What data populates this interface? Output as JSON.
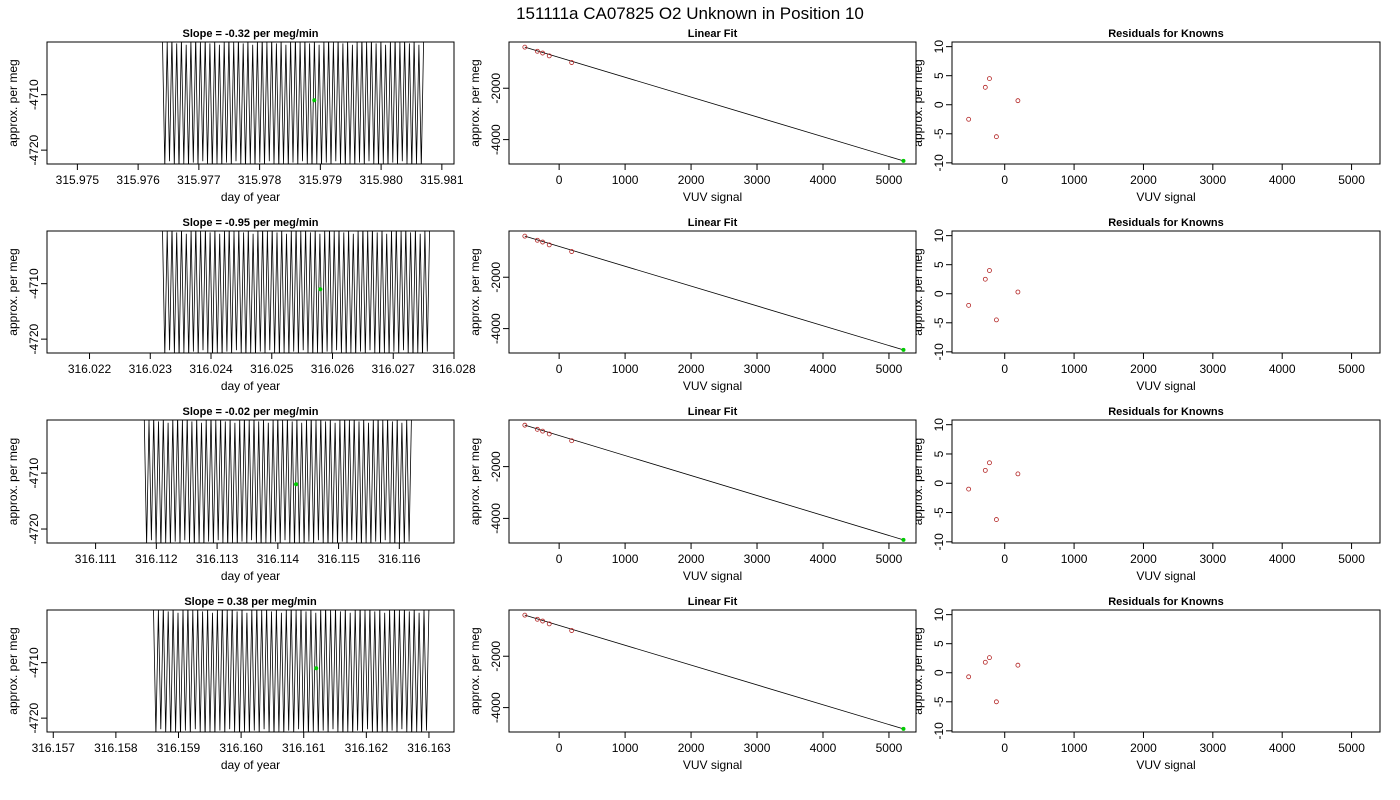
{
  "page_title": "151111a     CA07825   O2 Unknown in Position  10",
  "colors": {
    "trace": "#000000",
    "highlight": "#00cc00",
    "known_point": "#b22222",
    "background": "#ffffff"
  },
  "chart_data": [
    {
      "type": "line",
      "row": 0,
      "kind": "timeseries",
      "title": "Slope =  -0.32  per meg/min",
      "xlabel": "day of year",
      "ylabel": "approx. per meg",
      "xlim": [
        315.9745,
        315.9812
      ],
      "ylim": [
        -4722.5,
        -4700.5
      ],
      "x_ticks": [
        315.975,
        315.976,
        315.977,
        315.978,
        315.979,
        315.98,
        315.981
      ],
      "x_tick_labels": [
        "315.975",
        "315.976",
        "315.977",
        "315.978",
        "315.979",
        "315.980",
        "315.981"
      ],
      "y_ticks": [
        -4720,
        -4710
      ],
      "y_tick_labels": [
        "-4720",
        "-4710"
      ],
      "trace": {
        "x_start": 315.9764,
        "x_end": 315.9807,
        "y_low": -4722.5,
        "y_high": -4700.5,
        "cycles": 55
      },
      "highlight_point": {
        "x": 315.9789,
        "y": -4711
      }
    },
    {
      "type": "line",
      "row": 0,
      "kind": "fit",
      "title": "Linear Fit",
      "xlabel": "VUV signal",
      "ylabel": "approx. per meg",
      "xlim": [
        -760,
        5410
      ],
      "ylim": [
        -4950,
        -200
      ],
      "x_ticks": [
        0,
        1000,
        2000,
        3000,
        4000,
        5000
      ],
      "x_tick_labels": [
        "0",
        "1000",
        "2000",
        "3000",
        "4000",
        "5000"
      ],
      "y_ticks": [
        -4000,
        -2000
      ],
      "y_tick_labels": [
        "-4000",
        "-2000"
      ],
      "line": {
        "x": [
          -520,
          5220
        ],
        "y": [
          -400,
          -4830
        ]
      },
      "known_points": {
        "x": [
          -520,
          -330,
          -250,
          -150,
          190
        ],
        "y": [
          -400,
          -560,
          -630,
          -740,
          -1000
        ]
      },
      "highlight_point": {
        "x": 5220,
        "y": -4830
      }
    },
    {
      "type": "scatter",
      "row": 0,
      "kind": "residuals",
      "title": "Residuals for Knowns",
      "xlabel": "VUV signal",
      "ylabel": "approx. per meg",
      "xlim": [
        -760,
        5410
      ],
      "ylim": [
        -10.2,
        10.8
      ],
      "x_ticks": [
        0,
        1000,
        2000,
        3000,
        4000,
        5000
      ],
      "x_tick_labels": [
        "0",
        "1000",
        "2000",
        "3000",
        "4000",
        "5000"
      ],
      "y_ticks": [
        -10,
        -5,
        0,
        5,
        10
      ],
      "y_tick_labels": [
        "-10",
        "-5",
        "0",
        "5",
        "10"
      ],
      "points": {
        "x": [
          -520,
          -280,
          -220,
          -120,
          190
        ],
        "y": [
          -2.5,
          3,
          4.5,
          -5.5,
          0.7
        ]
      }
    },
    {
      "type": "line",
      "row": 1,
      "kind": "timeseries",
      "title": "Slope =  -0.95  per meg/min",
      "xlabel": "day of year",
      "ylabel": "approx. per meg",
      "xlim": [
        316.0213,
        316.028
      ],
      "ylim": [
        -4722.5,
        -4700.5
      ],
      "x_ticks": [
        316.022,
        316.023,
        316.024,
        316.025,
        316.026,
        316.027,
        316.028
      ],
      "x_tick_labels": [
        "316.022",
        "316.023",
        "316.024",
        "316.025",
        "316.026",
        "316.027",
        "316.028"
      ],
      "y_ticks": [
        -4720,
        -4710
      ],
      "y_tick_labels": [
        "-4720",
        "-4710"
      ],
      "trace": {
        "x_start": 316.0232,
        "x_end": 316.0276,
        "y_low": -4722.5,
        "y_high": -4700.5,
        "cycles": 56
      },
      "highlight_point": {
        "x": 316.0258,
        "y": -4711
      }
    },
    {
      "type": "line",
      "row": 1,
      "kind": "fit",
      "title": "Linear Fit",
      "xlabel": "VUV signal",
      "ylabel": "approx. per meg",
      "xlim": [
        -760,
        5410
      ],
      "ylim": [
        -4950,
        -200
      ],
      "x_ticks": [
        0,
        1000,
        2000,
        3000,
        4000,
        5000
      ],
      "x_tick_labels": [
        "0",
        "1000",
        "2000",
        "3000",
        "4000",
        "5000"
      ],
      "y_ticks": [
        -4000,
        -2000
      ],
      "y_tick_labels": [
        "-4000",
        "-2000"
      ],
      "line": {
        "x": [
          -520,
          5220
        ],
        "y": [
          -400,
          -4830
        ]
      },
      "known_points": {
        "x": [
          -520,
          -330,
          -250,
          -150,
          190
        ],
        "y": [
          -400,
          -560,
          -630,
          -740,
          -1000
        ]
      },
      "highlight_point": {
        "x": 5220,
        "y": -4830
      }
    },
    {
      "type": "scatter",
      "row": 1,
      "kind": "residuals",
      "title": "Residuals for Knowns",
      "xlabel": "VUV signal",
      "ylabel": "approx. per meg",
      "xlim": [
        -760,
        5410
      ],
      "ylim": [
        -10.2,
        10.8
      ],
      "x_ticks": [
        0,
        1000,
        2000,
        3000,
        4000,
        5000
      ],
      "x_tick_labels": [
        "0",
        "1000",
        "2000",
        "3000",
        "4000",
        "5000"
      ],
      "y_ticks": [
        -10,
        -5,
        0,
        5,
        10
      ],
      "y_tick_labels": [
        "-10",
        "-5",
        "0",
        "5",
        "10"
      ],
      "points": {
        "x": [
          -520,
          -280,
          -220,
          -120,
          190
        ],
        "y": [
          -2,
          2.5,
          4,
          -4.5,
          0.3
        ]
      }
    },
    {
      "type": "line",
      "row": 2,
      "kind": "timeseries",
      "title": "Slope =  -0.02  per meg/min",
      "xlabel": "day of year",
      "ylabel": "approx. per meg",
      "xlim": [
        316.1102,
        316.1169
      ],
      "ylim": [
        -4722.5,
        -4700.5
      ],
      "x_ticks": [
        316.111,
        316.112,
        316.113,
        316.114,
        316.115,
        316.116
      ],
      "x_tick_labels": [
        "316.111",
        "316.112",
        "316.113",
        "316.114",
        "316.115",
        "316.116"
      ],
      "y_ticks": [
        -4720,
        -4710
      ],
      "y_tick_labels": [
        "-4720",
        "-4710"
      ],
      "trace": {
        "x_start": 316.1118,
        "x_end": 316.1162,
        "y_low": -4722.5,
        "y_high": -4700.5,
        "cycles": 56
      },
      "highlight_point": {
        "x": 316.1143,
        "y": -4712
      }
    },
    {
      "type": "line",
      "row": 2,
      "kind": "fit",
      "title": "Linear Fit",
      "xlabel": "VUV signal",
      "ylabel": "approx. per meg",
      "xlim": [
        -760,
        5410
      ],
      "ylim": [
        -4950,
        -200
      ],
      "x_ticks": [
        0,
        1000,
        2000,
        3000,
        4000,
        5000
      ],
      "x_tick_labels": [
        "0",
        "1000",
        "2000",
        "3000",
        "4000",
        "5000"
      ],
      "y_ticks": [
        -4000,
        -2000
      ],
      "y_tick_labels": [
        "-4000",
        "-2000"
      ],
      "line": {
        "x": [
          -520,
          5220
        ],
        "y": [
          -400,
          -4830
        ]
      },
      "known_points": {
        "x": [
          -520,
          -330,
          -250,
          -150,
          190
        ],
        "y": [
          -400,
          -560,
          -630,
          -740,
          -1000
        ]
      },
      "highlight_point": {
        "x": 5220,
        "y": -4830
      }
    },
    {
      "type": "scatter",
      "row": 2,
      "kind": "residuals",
      "title": "Residuals for Knowns",
      "xlabel": "VUV signal",
      "ylabel": "approx. per meg",
      "xlim": [
        -760,
        5410
      ],
      "ylim": [
        -10.2,
        10.8
      ],
      "x_ticks": [
        0,
        1000,
        2000,
        3000,
        4000,
        5000
      ],
      "x_tick_labels": [
        "0",
        "1000",
        "2000",
        "3000",
        "4000",
        "5000"
      ],
      "y_ticks": [
        -10,
        -5,
        0,
        5,
        10
      ],
      "y_tick_labels": [
        "-10",
        "-5",
        "0",
        "5",
        "10"
      ],
      "points": {
        "x": [
          -520,
          -280,
          -220,
          -120,
          190
        ],
        "y": [
          -1,
          2.2,
          3.5,
          -6.2,
          1.6
        ]
      }
    },
    {
      "type": "line",
      "row": 3,
      "kind": "timeseries",
      "title": "Slope =  0.38  per meg/min",
      "xlabel": "day of year",
      "ylabel": "approx. per meg",
      "xlim": [
        316.1569,
        316.1634
      ],
      "ylim": [
        -4722.5,
        -4700.5
      ],
      "x_ticks": [
        316.157,
        316.158,
        316.159,
        316.16,
        316.161,
        316.162,
        316.163
      ],
      "x_tick_labels": [
        "316.157",
        "316.158",
        "316.159",
        "316.160",
        "316.161",
        "316.162",
        "316.163"
      ],
      "y_ticks": [
        -4720,
        -4710
      ],
      "y_tick_labels": [
        "-4720",
        "-4710"
      ],
      "trace": {
        "x_start": 316.1586,
        "x_end": 316.163,
        "y_low": -4722.5,
        "y_high": -4700.5,
        "cycles": 56
      },
      "highlight_point": {
        "x": 316.1612,
        "y": -4711
      }
    },
    {
      "type": "line",
      "row": 3,
      "kind": "fit",
      "title": "Linear Fit",
      "xlabel": "VUV signal",
      "ylabel": "approx. per meg",
      "xlim": [
        -760,
        5410
      ],
      "ylim": [
        -4950,
        -200
      ],
      "x_ticks": [
        0,
        1000,
        2000,
        3000,
        4000,
        5000
      ],
      "x_tick_labels": [
        "0",
        "1000",
        "2000",
        "3000",
        "4000",
        "5000"
      ],
      "y_ticks": [
        -4000,
        -2000
      ],
      "y_tick_labels": [
        "-4000",
        "-2000"
      ],
      "line": {
        "x": [
          -520,
          5220
        ],
        "y": [
          -400,
          -4830
        ]
      },
      "known_points": {
        "x": [
          -520,
          -330,
          -250,
          -150,
          190
        ],
        "y": [
          -400,
          -560,
          -630,
          -740,
          -1000
        ]
      },
      "highlight_point": {
        "x": 5220,
        "y": -4830
      }
    },
    {
      "type": "scatter",
      "row": 3,
      "kind": "residuals",
      "title": "Residuals for Knowns",
      "xlabel": "VUV signal",
      "ylabel": "approx. per meg",
      "xlim": [
        -760,
        5410
      ],
      "ylim": [
        -10.2,
        10.8
      ],
      "x_ticks": [
        0,
        1000,
        2000,
        3000,
        4000,
        5000
      ],
      "x_tick_labels": [
        "0",
        "1000",
        "2000",
        "3000",
        "4000",
        "5000"
      ],
      "y_ticks": [
        -10,
        -5,
        0,
        5,
        10
      ],
      "y_tick_labels": [
        "-10",
        "-5",
        "0",
        "5",
        "10"
      ],
      "points": {
        "x": [
          -520,
          -280,
          -220,
          -120,
          190
        ],
        "y": [
          -0.7,
          1.8,
          2.6,
          -5,
          1.3
        ]
      }
    }
  ]
}
